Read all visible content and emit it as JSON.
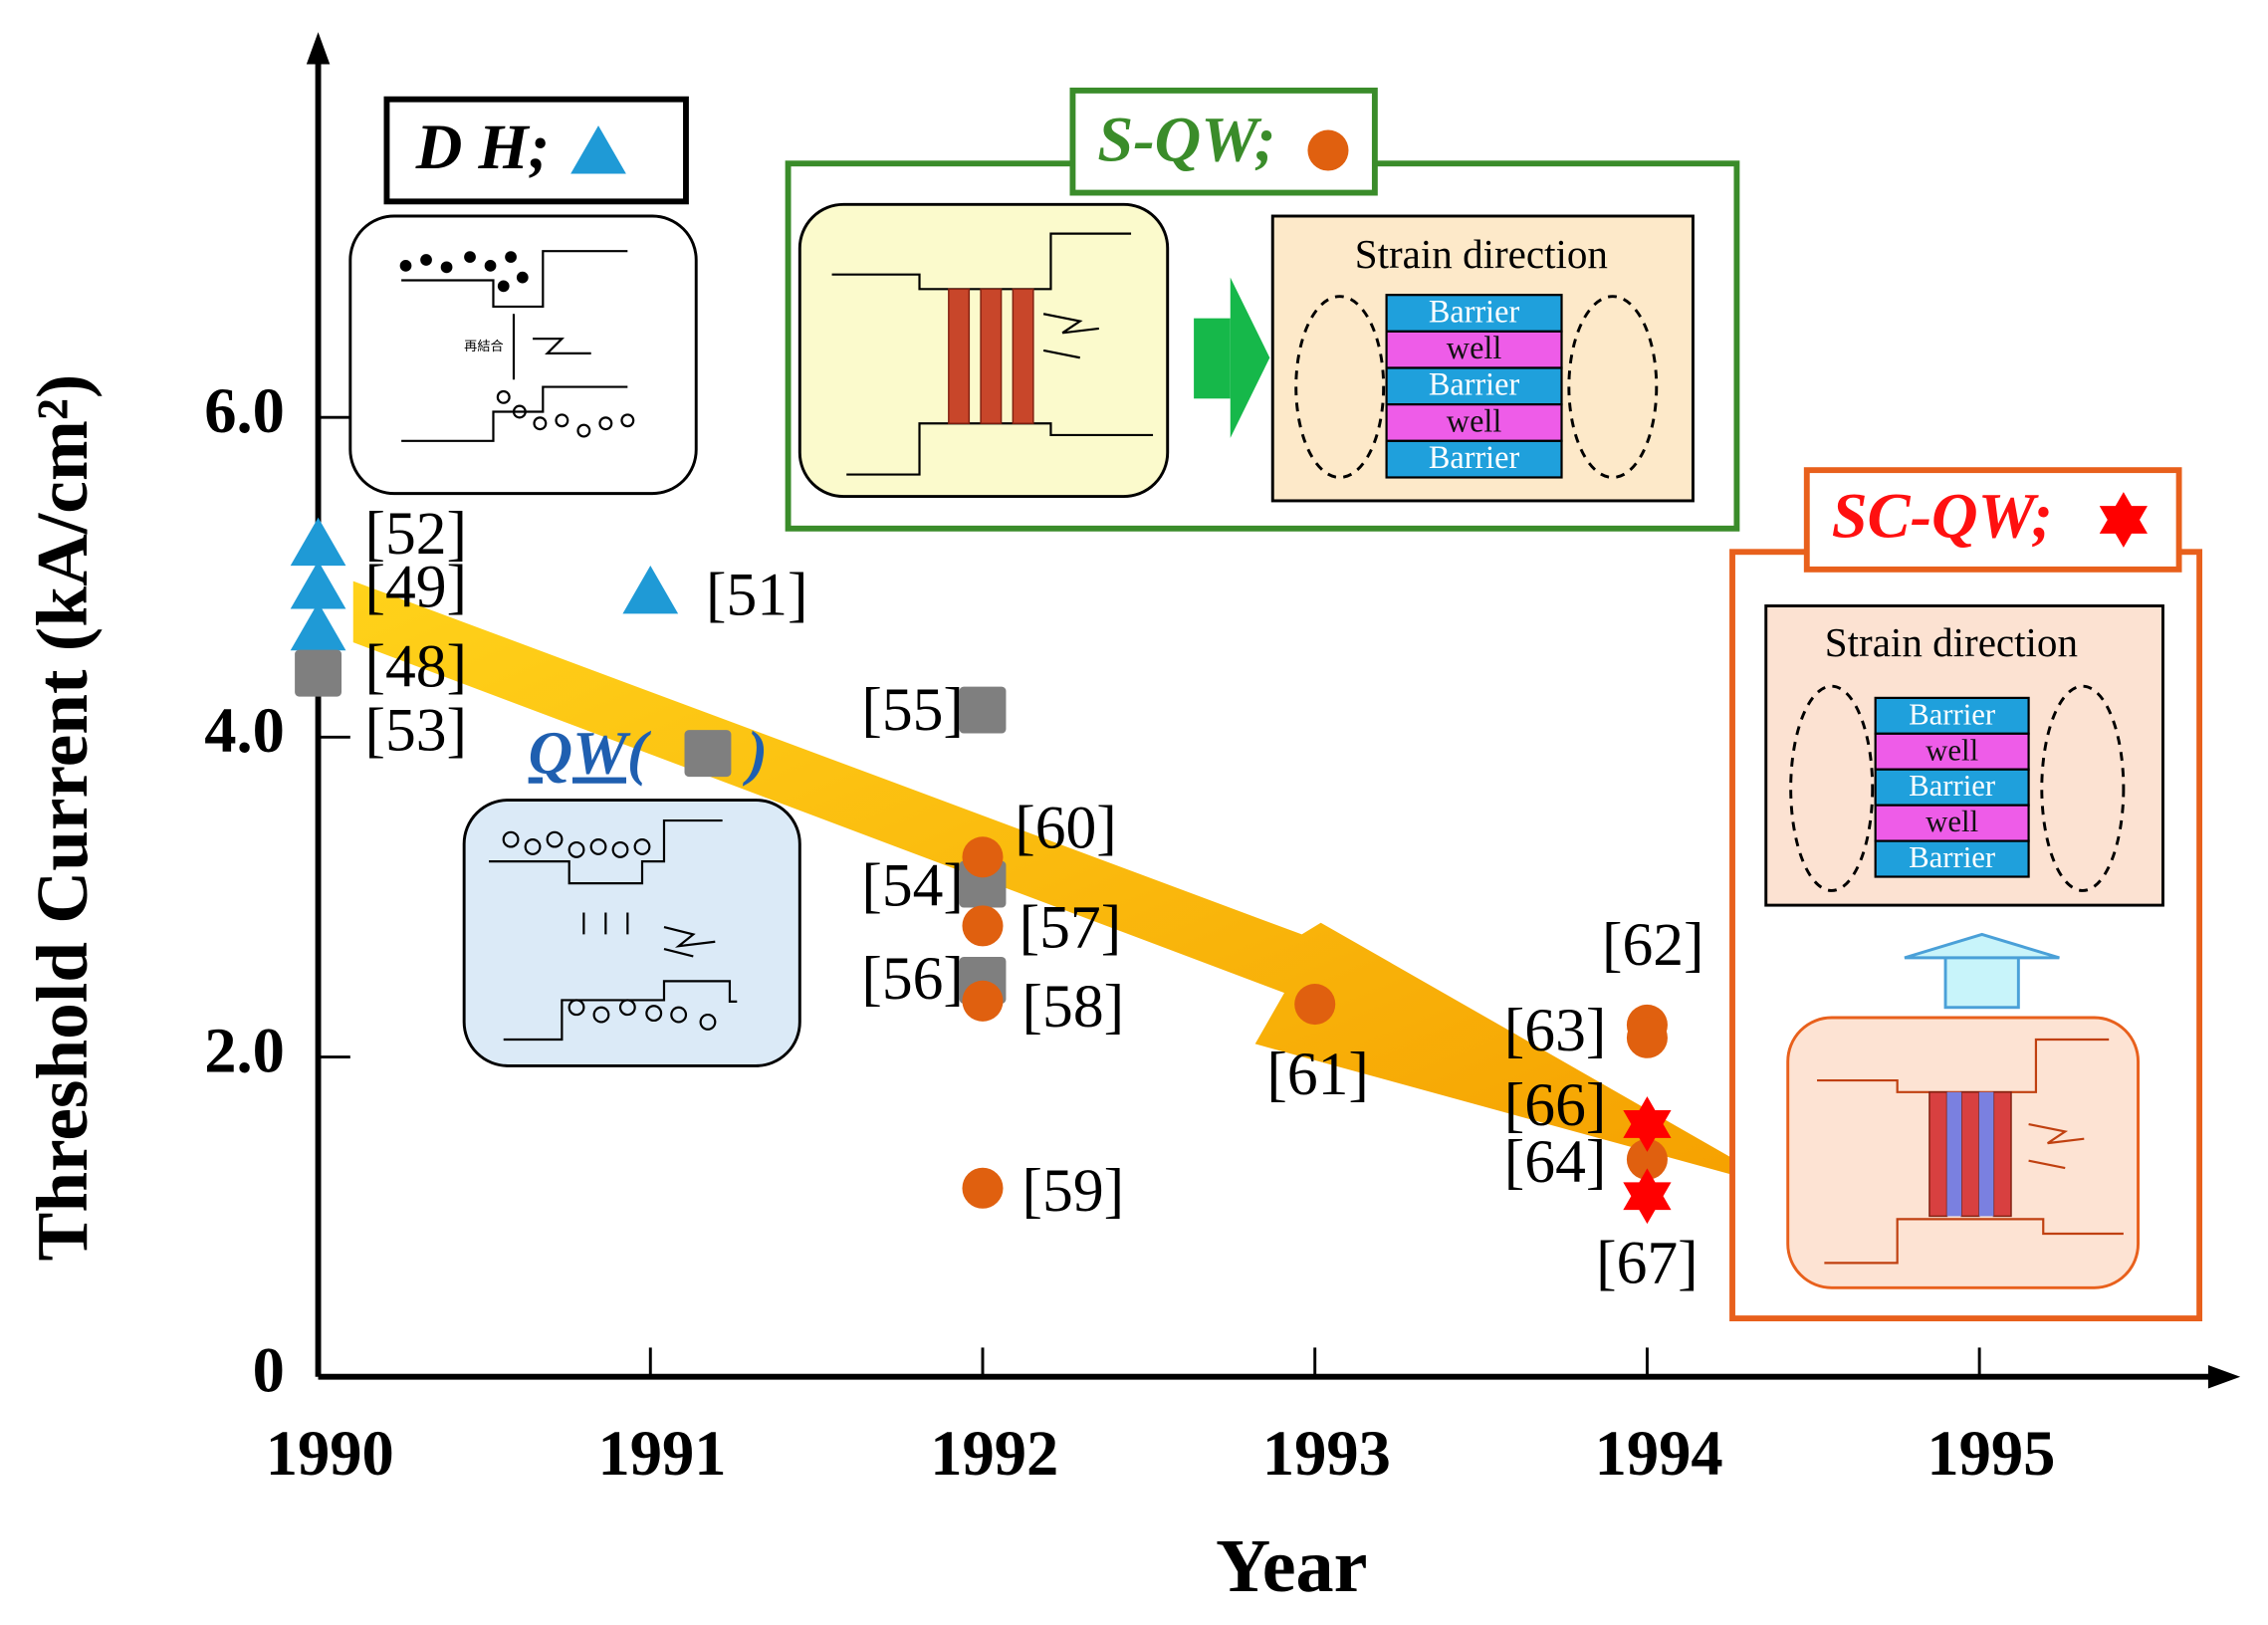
{
  "chart_data": {
    "type": "scatter",
    "x_label": "Year",
    "y_label": "Threshold Current (kA/cm²)",
    "xlim": [
      1990,
      1995.75
    ],
    "xticks": [
      1990,
      1991,
      1992,
      1993,
      1994,
      1995
    ],
    "ylim": [
      0,
      8.4
    ],
    "yticks": [
      0,
      {
        "value": 2,
        "label": "2.0"
      },
      {
        "value": 4,
        "label": "4.0"
      },
      {
        "value": 6,
        "label": "6.0"
      }
    ],
    "series": [
      {
        "name": "D H;",
        "marker": "triangle",
        "color": "#1f9ad6",
        "x": [
          1990,
          1990,
          1990,
          1991
        ],
        "values": [
          5.2,
          4.93,
          4.67,
          4.9
        ],
        "point_labels": [
          "[52]",
          "[49]",
          "[48]",
          "[51]"
        ]
      },
      {
        "name": "QW(",
        "legend_suffix": ")",
        "marker": "square",
        "color": "#7f7f7f",
        "x": [
          1990,
          1992,
          1992,
          1992
        ],
        "values": [
          4.4,
          4.17,
          3.08,
          2.48
        ],
        "point_labels": [
          "[53]",
          "[55]",
          "[54]",
          "[56]"
        ]
      },
      {
        "name": "S-QW;",
        "marker": "circle",
        "color": "#e0600f",
        "x": [
          1992,
          1992,
          1992,
          1992,
          1993,
          1994,
          1994,
          1994
        ],
        "values": [
          3.25,
          2.82,
          2.35,
          1.18,
          2.33,
          2.2,
          2.12,
          1.36
        ],
        "point_labels": [
          "[60]",
          "[57]",
          "[58]",
          "[59]",
          "[61]",
          "[62]",
          "[63]",
          "[64]"
        ]
      },
      {
        "name": "SC-QW;",
        "marker": "star",
        "color": "#ff0000",
        "x": [
          1994,
          1994
        ],
        "values": [
          1.58,
          1.13
        ],
        "point_labels": [
          "[66]",
          "[67]"
        ]
      }
    ],
    "insets": {
      "recombination": "再結合",
      "strain_direction": "Strain direction",
      "layers": [
        "Barrier",
        "well",
        "Barrier",
        "well",
        "Barrier"
      ]
    }
  }
}
